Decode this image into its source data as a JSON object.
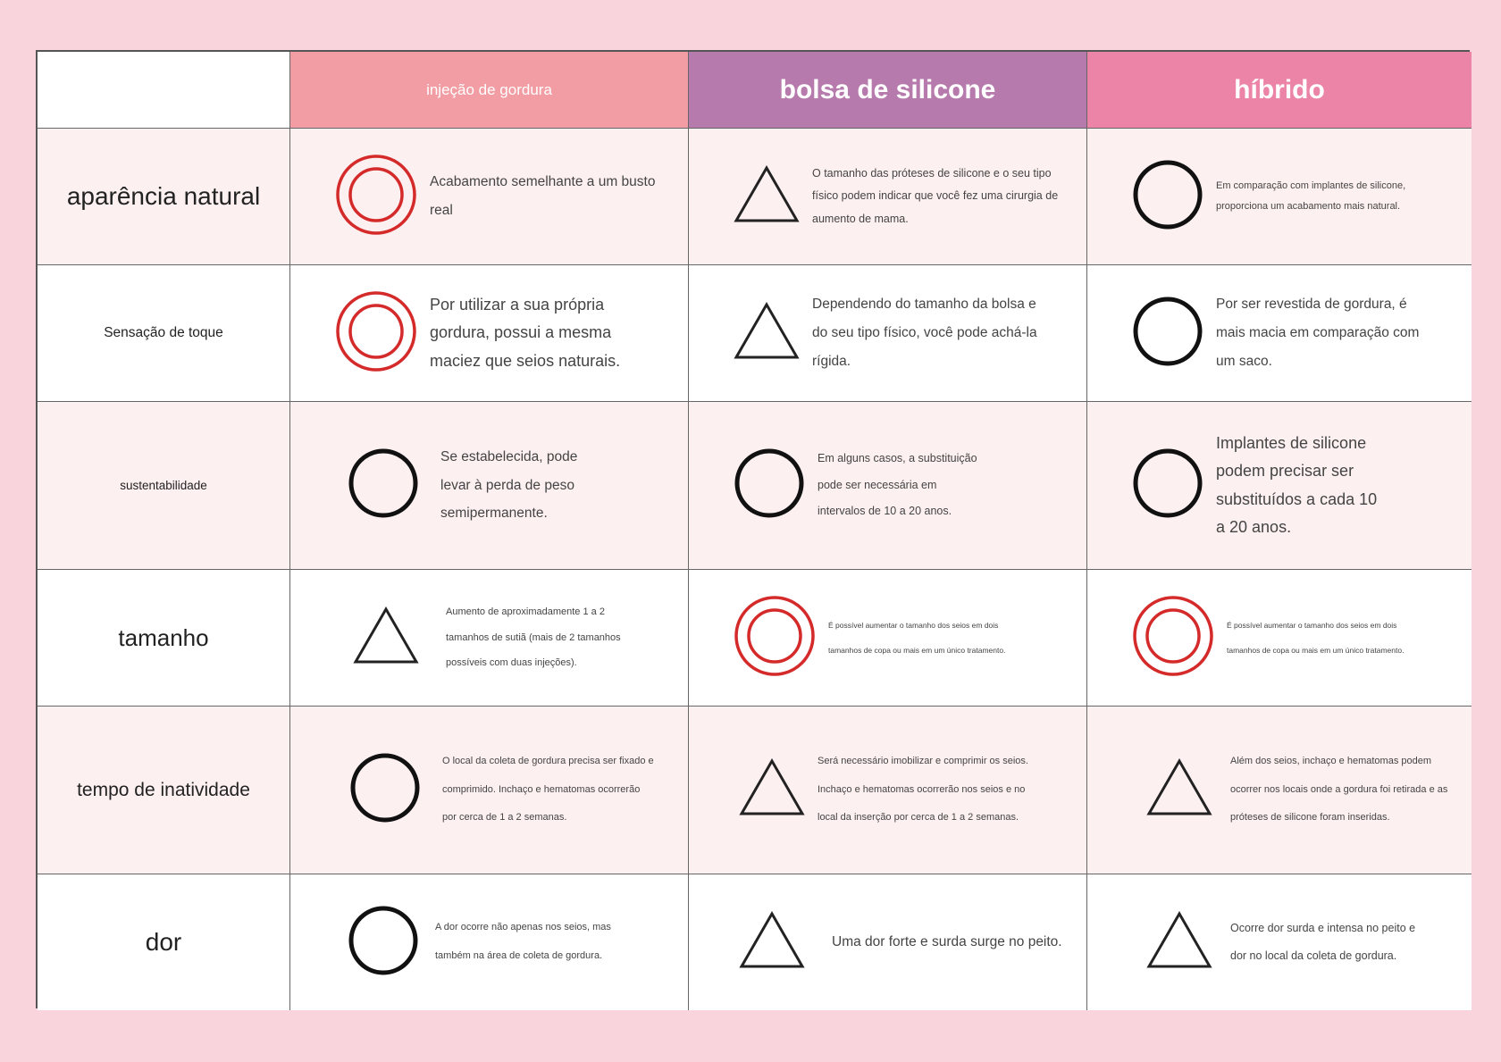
{
  "header": {
    "col1": "injeção de gordura",
    "col2": "bolsa de silicone",
    "col3": "híbrido"
  },
  "rows": [
    {
      "label": "aparência natural",
      "cells": [
        {
          "symbol": "double-circle",
          "text": "Acabamento semelhante a um busto real"
        },
        {
          "symbol": "triangle",
          "text": "O tamanho das próteses de silicone e o seu tipo físico podem indicar que você fez uma cirurgia de aumento de mama."
        },
        {
          "symbol": "circle",
          "text": "Em comparação com implantes de silicone, proporciona um acabamento mais natural."
        }
      ]
    },
    {
      "label": "Sensação de toque",
      "cells": [
        {
          "symbol": "double-circle",
          "text": "Por utilizar a sua própria gordura, possui a mesma maciez que seios naturais."
        },
        {
          "symbol": "triangle",
          "text": "Dependendo do tamanho da bolsa e do seu tipo físico, você pode achá-la rígida."
        },
        {
          "symbol": "circle",
          "text": "Por ser revestida de gordura, é mais macia em comparação com um saco."
        }
      ]
    },
    {
      "label": "sustentabilidade",
      "cells": [
        {
          "symbol": "circle",
          "text": "Se estabelecida, pode levar à perda de peso semipermanente."
        },
        {
          "symbol": "circle",
          "text": "Em alguns casos, a substituição pode ser necessária em intervalos de 10 a 20 anos."
        },
        {
          "symbol": "circle",
          "text": "Implantes de silicone podem precisar ser substituídos a cada 10 a 20 anos."
        }
      ]
    },
    {
      "label": "tamanho",
      "cells": [
        {
          "symbol": "triangle",
          "text": "Aumento de aproximadamente 1 a 2 tamanhos de sutiã (mais de 2 tamanhos possíveis com duas injeções)."
        },
        {
          "symbol": "double-circle",
          "text": "É possível aumentar o tamanho dos seios em dois tamanhos de copa ou mais em um único tratamento."
        },
        {
          "symbol": "double-circle",
          "text": "É possível aumentar o tamanho dos seios em dois tamanhos de copa ou mais em um único tratamento."
        }
      ]
    },
    {
      "label": "tempo de inatividade",
      "cells": [
        {
          "symbol": "circle",
          "text": "O local da coleta de gordura precisa ser fixado e comprimido. Inchaço e hematomas ocorrerão por cerca de 1 a 2 semanas."
        },
        {
          "symbol": "triangle",
          "text": "Será necessário imobilizar e comprimir os seios. Inchaço e hematomas ocorrerão nos seios e no local da inserção por cerca de 1 a 2 semanas."
        },
        {
          "symbol": "triangle",
          "text": "Além dos seios, inchaço e hematomas podem ocorrer nos locais onde a gordura foi retirada e as próteses de silicone foram inseridas."
        }
      ]
    },
    {
      "label": "dor",
      "cells": [
        {
          "symbol": "circle",
          "text": "A dor ocorre não apenas nos seios, mas também na área de coleta de gordura."
        },
        {
          "symbol": "triangle",
          "text": "Uma dor forte e surda surge no peito."
        },
        {
          "symbol": "triangle",
          "text": "Ocorre dor surda e intensa no peito e dor no local da coleta de gordura."
        }
      ]
    }
  ],
  "colors": {
    "double_circle": "#d42a2a",
    "circle": "#111111",
    "triangle": "#222222",
    "header_fat": "#f29ca3",
    "header_silicone": "#b77aac",
    "header_hybrid": "#ec84a8",
    "row_pink": "#fdf0f1",
    "page_bg": "#f9d4dc"
  }
}
